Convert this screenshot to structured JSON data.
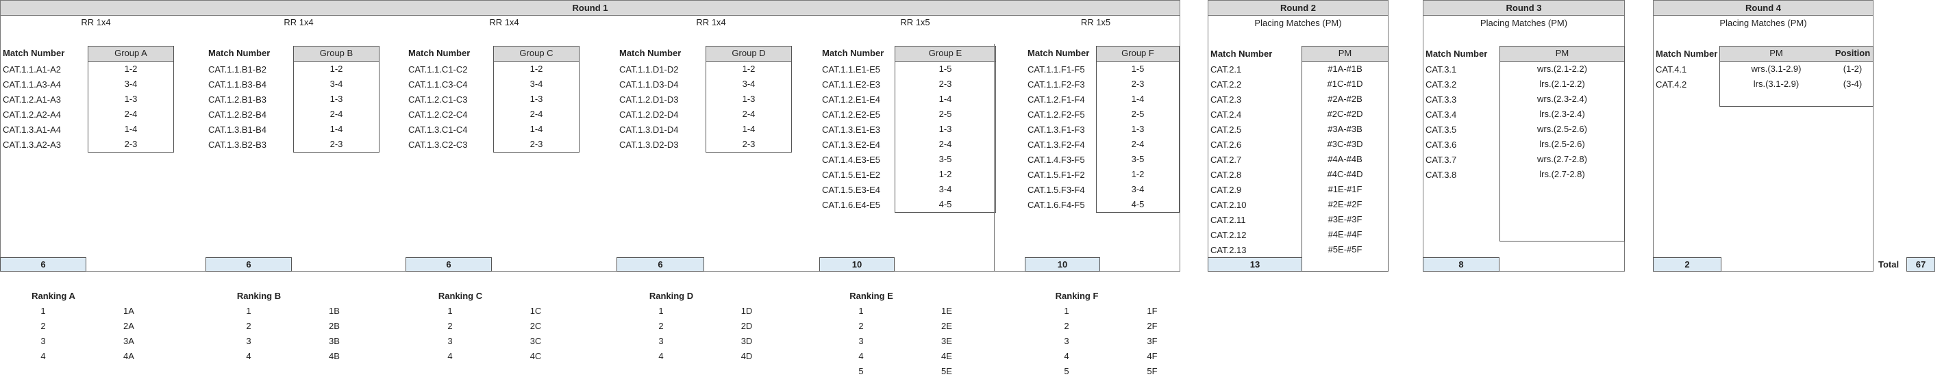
{
  "round1": {
    "title": "Round 1",
    "match_number_header": "Match Number",
    "groups": [
      {
        "format": "RR 1x4",
        "header": "Group A",
        "matches": [
          "CAT.1.1.A1-A2",
          "CAT.1.1.A3-A4",
          "CAT.1.2.A1-A3",
          "CAT.1.2.A2-A4",
          "CAT.1.3.A1-A4",
          "CAT.1.3.A2-A3"
        ],
        "pairs": [
          "1-2",
          "3-4",
          "1-3",
          "2-4",
          "1-4",
          "2-3"
        ],
        "count": "6"
      },
      {
        "format": "RR 1x4",
        "header": "Group B",
        "matches": [
          "CAT.1.1.B1-B2",
          "CAT.1.1.B3-B4",
          "CAT.1.2.B1-B3",
          "CAT.1.2.B2-B4",
          "CAT.1.3.B1-B4",
          "CAT.1.3.B2-B3"
        ],
        "pairs": [
          "1-2",
          "3-4",
          "1-3",
          "2-4",
          "1-4",
          "2-3"
        ],
        "count": "6"
      },
      {
        "format": "RR 1x4",
        "header": "Group C",
        "matches": [
          "CAT.1.1.C1-C2",
          "CAT.1.1.C3-C4",
          "CAT.1.2.C1-C3",
          "CAT.1.2.C2-C4",
          "CAT.1.3.C1-C4",
          "CAT.1.3.C2-C3"
        ],
        "pairs": [
          "1-2",
          "3-4",
          "1-3",
          "2-4",
          "1-4",
          "2-3"
        ],
        "count": "6"
      },
      {
        "format": "RR 1x4",
        "header": "Group D",
        "matches": [
          "CAT.1.1.D1-D2",
          "CAT.1.1.D3-D4",
          "CAT.1.2.D1-D3",
          "CAT.1.2.D2-D4",
          "CAT.1.3.D1-D4",
          "CAT.1.3.D2-D3"
        ],
        "pairs": [
          "1-2",
          "3-4",
          "1-3",
          "2-4",
          "1-4",
          "2-3"
        ],
        "count": "6"
      },
      {
        "format": "RR 1x5",
        "header": "Group E",
        "matches": [
          "CAT.1.1.E1-E5",
          "CAT.1.1.E2-E3",
          "CAT.1.2.E1-E4",
          "CAT.1.2.E2-E5",
          "CAT.1.3.E1-E3",
          "CAT.1.3.E2-E4",
          "CAT.1.4.E3-E5",
          "CAT.1.5.E1-E2",
          "CAT.1.5.E3-E4",
          "CAT.1.6.E4-E5"
        ],
        "pairs": [
          "1-5",
          "2-3",
          "1-4",
          "2-5",
          "1-3",
          "2-4",
          "3-5",
          "1-2",
          "3-4",
          "4-5"
        ],
        "count": "10"
      },
      {
        "format": "RR 1x5",
        "header": "Group F",
        "matches": [
          "CAT.1.1.F1-F5",
          "CAT.1.1.F2-F3",
          "CAT.1.2.F1-F4",
          "CAT.1.2.F2-F5",
          "CAT.1.3.F1-F3",
          "CAT.1.3.F2-F4",
          "CAT.1.4.F3-F5",
          "CAT.1.5.F1-F2",
          "CAT.1.5.F3-F4",
          "CAT.1.6.F4-F5"
        ],
        "pairs": [
          "1-5",
          "2-3",
          "1-4",
          "2-5",
          "1-3",
          "2-4",
          "3-5",
          "1-2",
          "3-4",
          "4-5"
        ],
        "count": "10"
      }
    ]
  },
  "round2": {
    "title": "Round 2",
    "subtitle": "Placing Matches (PM)",
    "match_number_header": "Match Number",
    "pm_header": "PM",
    "matches": [
      "CAT.2.1",
      "CAT.2.2",
      "CAT.2.3",
      "CAT.2.4",
      "CAT.2.5",
      "CAT.2.6",
      "CAT.2.7",
      "CAT.2.8",
      "CAT.2.9",
      "CAT.2.10",
      "CAT.2.11",
      "CAT.2.12",
      "CAT.2.13"
    ],
    "pm": [
      "#1A-#1B",
      "#1C-#1D",
      "#2A-#2B",
      "#2C-#2D",
      "#3A-#3B",
      "#3C-#3D",
      "#4A-#4B",
      "#4C-#4D",
      "#1E-#1F",
      "#2E-#2F",
      "#3E-#3F",
      "#4E-#4F",
      "#5E-#5F"
    ],
    "count": "13"
  },
  "round3": {
    "title": "Round 3",
    "subtitle": "Placing Matches (PM)",
    "match_number_header": "Match Number",
    "pm_header": "PM",
    "matches": [
      "CAT.3.1",
      "CAT.3.2",
      "CAT.3.3",
      "CAT.3.4",
      "CAT.3.5",
      "CAT.3.6",
      "CAT.3.7",
      "CAT.3.8"
    ],
    "pm": [
      "wrs.(2.1-2.2)",
      "lrs.(2.1-2.2)",
      "wrs.(2.3-2.4)",
      "lrs.(2.3-2.4)",
      "wrs.(2.5-2.6)",
      "lrs.(2.5-2.6)",
      "wrs.(2.7-2.8)",
      "lrs.(2.7-2.8)"
    ],
    "count": "8"
  },
  "round4": {
    "title": "Round 4",
    "subtitle": "Placing Matches (PM)",
    "match_number_header": "Match Number",
    "pm_header": "PM",
    "position_header": "Position",
    "matches": [
      "CAT.4.1",
      "CAT.4.2"
    ],
    "pm": [
      "wrs.(3.1-2.9)",
      "lrs.(3.1-2.9)"
    ],
    "positions": [
      "(1-2)",
      "(3-4)"
    ],
    "count": "2"
  },
  "total": {
    "label": "Total",
    "value": "67"
  },
  "rankings": [
    {
      "title": "Ranking A",
      "ranks": [
        "1",
        "2",
        "3",
        "4"
      ],
      "labels": [
        "1A",
        "2A",
        "3A",
        "4A"
      ]
    },
    {
      "title": "Ranking B",
      "ranks": [
        "1",
        "2",
        "3",
        "4"
      ],
      "labels": [
        "1B",
        "2B",
        "3B",
        "4B"
      ]
    },
    {
      "title": "Ranking C",
      "ranks": [
        "1",
        "2",
        "3",
        "4"
      ],
      "labels": [
        "1C",
        "2C",
        "3C",
        "4C"
      ]
    },
    {
      "title": "Ranking D",
      "ranks": [
        "1",
        "2",
        "3",
        "4"
      ],
      "labels": [
        "1D",
        "2D",
        "3D",
        "4D"
      ]
    },
    {
      "title": "Ranking E",
      "ranks": [
        "1",
        "2",
        "3",
        "4",
        "5"
      ],
      "labels": [
        "1E",
        "2E",
        "3E",
        "4E",
        "5E"
      ]
    },
    {
      "title": "Ranking F",
      "ranks": [
        "1",
        "2",
        "3",
        "4",
        "5"
      ],
      "labels": [
        "1F",
        "2F",
        "3F",
        "4F",
        "5F"
      ]
    }
  ]
}
